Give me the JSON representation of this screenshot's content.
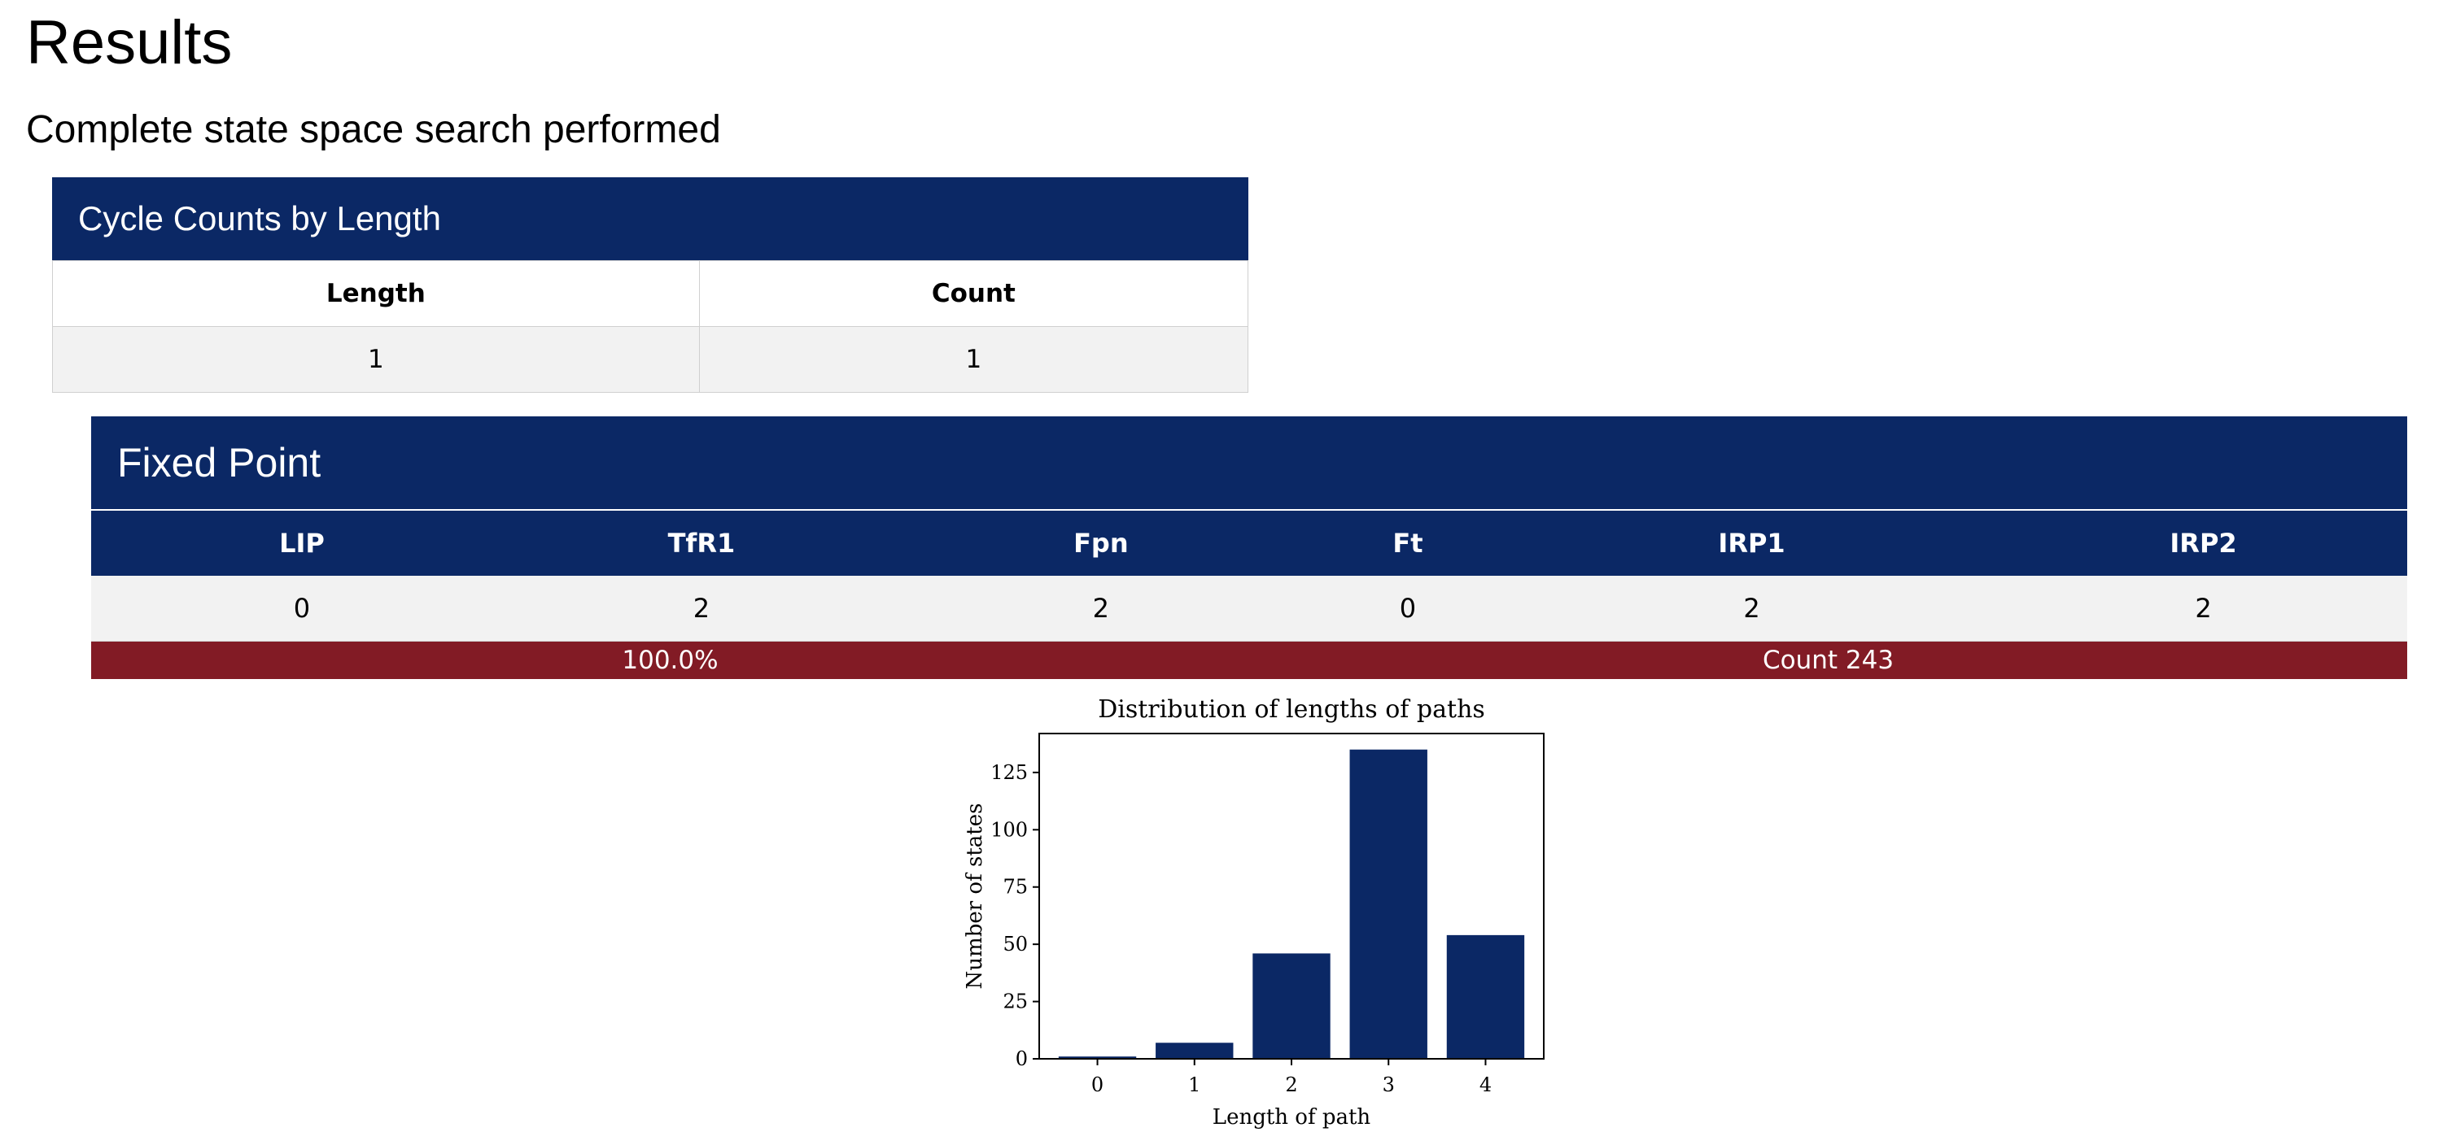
{
  "page": {
    "title": "Results",
    "subtitle": "Complete state space search performed"
  },
  "cycle_table": {
    "caption": "Cycle Counts by Length",
    "headers": [
      "Length",
      "Count"
    ],
    "rows": [
      [
        "1",
        "1"
      ]
    ]
  },
  "fixed_point": {
    "title": "Fixed Point",
    "headers": [
      "LIP",
      "TfR1",
      "Fpn",
      "Ft",
      "IRP1",
      "IRP2"
    ],
    "values": [
      "0",
      "2",
      "2",
      "0",
      "2",
      "2"
    ],
    "footer": {
      "percent": "100.0%",
      "count": "Count 243"
    }
  },
  "colors": {
    "navy": "#0b2865",
    "crimson": "#821b25",
    "row_bg": "#f2f2f2"
  },
  "chart_data": {
    "type": "bar",
    "title": "Distribution of lengths of paths",
    "xlabel": "Length of path",
    "ylabel": "Number of states",
    "categories": [
      "0",
      "1",
      "2",
      "3",
      "4"
    ],
    "values": [
      1,
      7,
      46,
      135,
      54
    ],
    "ylim": [
      0,
      142
    ],
    "yticks": [
      0,
      25,
      50,
      75,
      100,
      125
    ],
    "ytick_labels": [
      "0",
      "25",
      "50",
      "75",
      "100",
      "125"
    ],
    "bar_color": "#0b2865",
    "grid": false,
    "legend": "none"
  }
}
